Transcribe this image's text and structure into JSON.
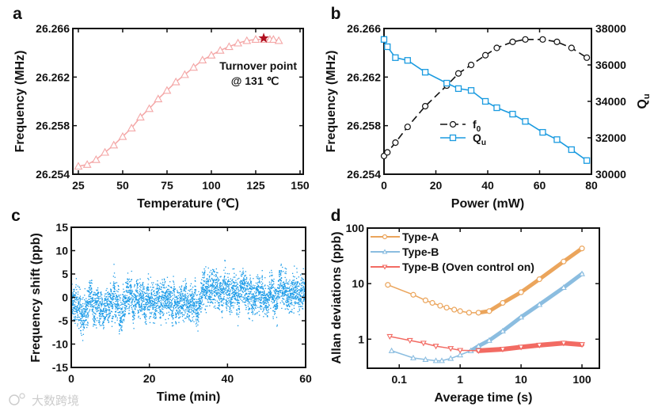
{
  "chart_data": [
    {
      "panel": "a",
      "type": "line",
      "xlabel": "Temperature (℃)",
      "ylabel": "Frequency (MHz)",
      "xlim": [
        21.9,
        151.8
      ],
      "ylim": [
        26.254,
        26.266
      ],
      "xticks": [
        "25",
        "50",
        "75",
        "100",
        "125",
        "150"
      ],
      "xtick_values": [
        25,
        50,
        75,
        100,
        125,
        150
      ],
      "yticks": [
        "26.254",
        "26.258",
        "26.262",
        "26.266"
      ],
      "ytick_values": [
        26.254,
        26.258,
        26.262,
        26.266
      ],
      "series": [
        {
          "name": "frequency",
          "color": "#f4a6a6",
          "marker": "triangle",
          "x": [
            25,
            30,
            35,
            40,
            45,
            50,
            55,
            60,
            65,
            70,
            75,
            80,
            85,
            90,
            95,
            100,
            105,
            110,
            115,
            120,
            125,
            130,
            133,
            135,
            138
          ],
          "y": [
            26.25465,
            26.2548,
            26.2552,
            26.2558,
            26.2564,
            26.2571,
            26.2578,
            26.2587,
            26.2594,
            26.2602,
            26.2609,
            26.2616,
            26.2622,
            26.2628,
            26.2634,
            26.2638,
            26.2642,
            26.2645,
            26.2648,
            26.265,
            26.2651,
            26.2651,
            26.2651,
            26.2651,
            26.265
          ]
        }
      ],
      "turnover": {
        "x": 129.5,
        "y": 26.2652,
        "color": "#b01020",
        "label_line1": "Turnover point",
        "label_line2": "@ 131 ℃"
      }
    },
    {
      "panel": "b",
      "type": "line",
      "xlabel": "Power (mW)",
      "ylabel": "Frequency (MHz)",
      "y2label": "Q",
      "y2label_sub": "u",
      "xlim": [
        0,
        80
      ],
      "ylim": [
        26.254,
        26.266
      ],
      "y2lim": [
        30000,
        38000
      ],
      "xticks": [
        "0",
        "20",
        "40",
        "60",
        "80"
      ],
      "xtick_values": [
        0,
        20,
        40,
        60,
        80
      ],
      "yticks": [
        "26.254",
        "26.258",
        "26.262",
        "26.266"
      ],
      "ytick_values": [
        26.254,
        26.258,
        26.262,
        26.266
      ],
      "y2ticks": [
        "30000",
        "32000",
        "34000",
        "36000",
        "38000"
      ],
      "y2tick_values": [
        30000,
        32000,
        34000,
        36000,
        38000
      ],
      "series": [
        {
          "name": "f",
          "sub": "0",
          "color": "#111111",
          "marker": "circle",
          "axis": "left",
          "dash": true,
          "x": [
            0,
            1.3,
            4.4,
            9.1,
            15.9,
            24.2,
            28.7,
            33.6,
            39.1,
            43.5,
            49.6,
            54.5,
            61.2,
            66.7,
            72.3,
            78.2
          ],
          "y": [
            26.2555,
            26.2558,
            26.2566,
            26.2579,
            26.2596,
            26.2613,
            26.2623,
            26.263,
            26.2638,
            26.2644,
            26.2649,
            26.2651,
            26.2651,
            26.2649,
            26.2644,
            26.2636
          ]
        },
        {
          "name": "Q",
          "sub": "u",
          "color": "#1b9be0",
          "marker": "square",
          "axis": "right",
          "dash": false,
          "x": [
            0,
            1.3,
            4.4,
            9.1,
            15.9,
            24.2,
            28.7,
            33.6,
            39.1,
            43.5,
            49.6,
            54.5,
            61.2,
            66.7,
            72.3,
            78.2
          ],
          "y": [
            37400,
            37000,
            36400,
            36250,
            35600,
            35000,
            34700,
            34600,
            34000,
            33650,
            33300,
            32900,
            32300,
            31900,
            31350,
            30750
          ]
        }
      ]
    },
    {
      "panel": "c",
      "type": "scatter",
      "xlabel": "Time (min)",
      "ylabel": "Frequency shift (ppb)",
      "xlim": [
        0,
        60
      ],
      "ylim": [
        -15,
        15
      ],
      "xticks": [
        "0",
        "20",
        "40",
        "60"
      ],
      "xtick_values": [
        0,
        20,
        40,
        60
      ],
      "yticks": [
        "-15",
        "-10",
        "-5",
        "0",
        "5",
        "10",
        "15"
      ],
      "ytick_values": [
        -15,
        -10,
        -5,
        0,
        5,
        10,
        15
      ],
      "color": "#1b9be8",
      "trend_x": [
        0,
        5,
        10,
        15,
        20,
        25,
        30,
        35,
        40,
        45,
        50,
        55,
        60
      ],
      "trend_mean": [
        -1.5,
        -2.5,
        -0.5,
        -1,
        -0.5,
        -1.2,
        -0.5,
        1.5,
        1.5,
        1,
        1.5,
        1.5,
        2
      ],
      "spread": 3.2,
      "n_points": 4000
    },
    {
      "panel": "d",
      "type": "line",
      "xscale": "log",
      "yscale": "log",
      "xlabel": "Average time (s)",
      "ylabel": "Allan deviations (ppb)",
      "xlim": [
        0.03,
        193
      ],
      "ylim": [
        0.3,
        100
      ],
      "xticks": [
        "0.1",
        "1",
        "10",
        "100"
      ],
      "xtick_values": [
        0.1,
        1,
        10,
        100
      ],
      "yticks": [
        "1",
        "10",
        "100"
      ],
      "ytick_values": [
        1,
        10,
        100
      ],
      "legend_position": "top-left",
      "series": [
        {
          "name": "Type-A",
          "color": "#eba55c",
          "marker": "circle",
          "x": [
            0.065,
            0.17,
            0.27,
            0.35,
            0.47,
            0.6,
            0.8,
            1.0,
            1.4,
            2,
            3,
            5,
            10,
            20,
            50,
            100
          ],
          "y": [
            9.5,
            6.3,
            5.0,
            4.5,
            4.0,
            3.7,
            3.4,
            3.2,
            3.0,
            3.0,
            3.2,
            4.5,
            7,
            12,
            25,
            43
          ]
        },
        {
          "name": "Type-B",
          "color": "#8bbde0",
          "marker": "triangle",
          "x": [
            0.075,
            0.17,
            0.27,
            0.4,
            0.5,
            0.7,
            1,
            1.5,
            2,
            3,
            5,
            10,
            20,
            50,
            100
          ],
          "y": [
            0.62,
            0.46,
            0.43,
            0.41,
            0.41,
            0.45,
            0.52,
            0.62,
            0.75,
            0.95,
            1.4,
            2.5,
            4.2,
            8.5,
            15
          ]
        },
        {
          "name": "Type-B (Oven control on)",
          "color": "#f26b63",
          "marker": "triangle-down",
          "x": [
            0.07,
            0.15,
            0.25,
            0.4,
            0.7,
            1,
            2,
            5,
            10,
            20,
            50,
            100
          ],
          "y": [
            1.12,
            0.95,
            0.85,
            0.75,
            0.68,
            0.63,
            0.62,
            0.66,
            0.72,
            0.78,
            0.85,
            0.8
          ]
        }
      ]
    }
  ],
  "panel_letters": [
    "a",
    "b",
    "c",
    "d"
  ],
  "watermark": "大数跨境"
}
